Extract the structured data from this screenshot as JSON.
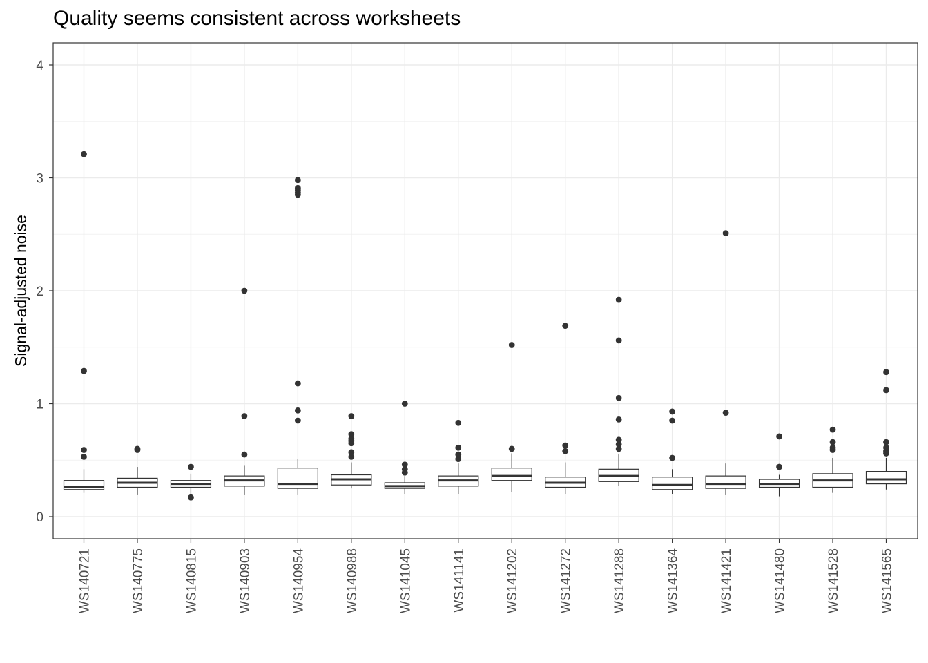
{
  "chart_data": {
    "type": "boxplot",
    "title": "Quality seems consistent across worksheets",
    "xlabel": "",
    "ylabel": "Signal-adjusted noise",
    "ylim": [
      -0.2,
      4.2
    ],
    "yticks": [
      0,
      1,
      2,
      3,
      4
    ],
    "grid": true,
    "legend": "none",
    "categories": [
      "WS140721",
      "WS140775",
      "WS140815",
      "WS140903",
      "WS140954",
      "WS140988",
      "WS141045",
      "WS141141",
      "WS141202",
      "WS141272",
      "WS141288",
      "WS141364",
      "WS141421",
      "WS141480",
      "WS141528",
      "WS141565"
    ],
    "boxes": [
      {
        "category": "WS140721",
        "whisker_low": 0.21,
        "q1": 0.24,
        "median": 0.26,
        "q3": 0.32,
        "whisker_high": 0.42,
        "outliers": [
          0.53,
          0.59,
          1.29,
          3.21
        ]
      },
      {
        "category": "WS140775",
        "whisker_low": 0.19,
        "q1": 0.26,
        "median": 0.3,
        "q3": 0.34,
        "whisker_high": 0.44,
        "outliers": [
          0.59,
          0.6
        ]
      },
      {
        "category": "WS140815",
        "whisker_low": 0.2,
        "q1": 0.26,
        "median": 0.29,
        "q3": 0.32,
        "whisker_high": 0.38,
        "outliers": [
          0.17,
          0.44
        ]
      },
      {
        "category": "WS140903",
        "whisker_low": 0.19,
        "q1": 0.27,
        "median": 0.32,
        "q3": 0.36,
        "whisker_high": 0.45,
        "outliers": [
          0.55,
          0.89,
          2.0
        ]
      },
      {
        "category": "WS140954",
        "whisker_low": 0.19,
        "q1": 0.25,
        "median": 0.29,
        "q3": 0.43,
        "whisker_high": 0.51,
        "outliers": [
          0.85,
          0.94,
          1.18,
          2.85,
          2.87,
          2.89,
          2.91,
          2.98
        ]
      },
      {
        "category": "WS140988",
        "whisker_low": 0.25,
        "q1": 0.28,
        "median": 0.33,
        "q3": 0.37,
        "whisker_high": 0.48,
        "outliers": [
          0.53,
          0.57,
          0.65,
          0.67,
          0.69,
          0.73,
          0.89
        ]
      },
      {
        "category": "WS141045",
        "whisker_low": 0.2,
        "q1": 0.25,
        "median": 0.27,
        "q3": 0.3,
        "whisker_high": 0.36,
        "outliers": [
          0.39,
          0.42,
          0.46,
          1.0
        ]
      },
      {
        "category": "WS141141",
        "whisker_low": 0.2,
        "q1": 0.27,
        "median": 0.32,
        "q3": 0.36,
        "whisker_high": 0.47,
        "outliers": [
          0.51,
          0.55,
          0.61,
          0.83
        ]
      },
      {
        "category": "WS141202",
        "whisker_low": 0.22,
        "q1": 0.32,
        "median": 0.36,
        "q3": 0.43,
        "whisker_high": 0.56,
        "outliers": [
          0.6,
          1.52
        ]
      },
      {
        "category": "WS141272",
        "whisker_low": 0.2,
        "q1": 0.26,
        "median": 0.3,
        "q3": 0.35,
        "whisker_high": 0.48,
        "outliers": [
          0.58,
          0.63,
          1.69
        ]
      },
      {
        "category": "WS141288",
        "whisker_low": 0.27,
        "q1": 0.31,
        "median": 0.36,
        "q3": 0.42,
        "whisker_high": 0.55,
        "outliers": [
          0.6,
          0.64,
          0.68,
          0.86,
          1.05,
          1.56,
          1.92
        ]
      },
      {
        "category": "WS141364",
        "whisker_low": 0.2,
        "q1": 0.24,
        "median": 0.28,
        "q3": 0.35,
        "whisker_high": 0.42,
        "outliers": [
          0.52,
          0.85,
          0.93
        ]
      },
      {
        "category": "WS141421",
        "whisker_low": 0.19,
        "q1": 0.25,
        "median": 0.29,
        "q3": 0.36,
        "whisker_high": 0.47,
        "outliers": [
          0.92,
          2.51
        ]
      },
      {
        "category": "WS141480",
        "whisker_low": 0.18,
        "q1": 0.26,
        "median": 0.29,
        "q3": 0.33,
        "whisker_high": 0.37,
        "outliers": [
          0.44,
          0.71
        ]
      },
      {
        "category": "WS141528",
        "whisker_low": 0.21,
        "q1": 0.26,
        "median": 0.32,
        "q3": 0.38,
        "whisker_high": 0.52,
        "outliers": [
          0.59,
          0.61,
          0.66,
          0.77
        ]
      },
      {
        "category": "WS141565",
        "whisker_low": 0.24,
        "q1": 0.29,
        "median": 0.33,
        "q3": 0.4,
        "whisker_high": 0.52,
        "outliers": [
          0.56,
          0.58,
          0.61,
          0.66,
          1.12,
          1.28
        ]
      }
    ]
  }
}
